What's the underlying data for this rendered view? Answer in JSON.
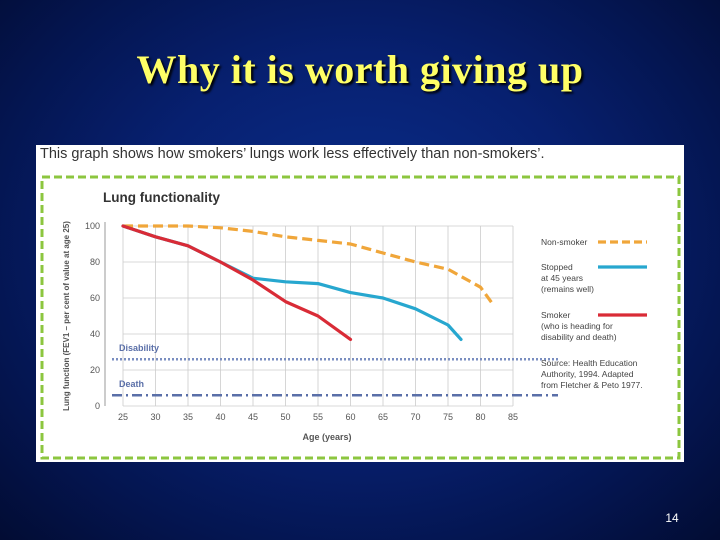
{
  "slide": {
    "title": "Why it is worth giving up",
    "page_number": "14"
  },
  "chart_data": {
    "type": "line",
    "caption": "This graph shows how smokers’ lungs work less effectively than non-smokers’.",
    "title": "Lung functionality",
    "xlabel": "Age (years)",
    "ylabel": "Lung function (FEV1 – per cent of value at age 25)",
    "xlim": [
      25,
      85
    ],
    "ylim": [
      0,
      100
    ],
    "x_ticks": [
      "25",
      "30",
      "35",
      "40",
      "45",
      "50",
      "55",
      "60",
      "65",
      "70",
      "75",
      "80",
      "85"
    ],
    "y_ticks": [
      "0",
      "20",
      "40",
      "60",
      "80",
      "100"
    ],
    "grid": true,
    "legend_position": "right",
    "series": [
      {
        "name": "Non-smoker",
        "style": "dashed",
        "color": "#f0a63a",
        "x": [
          25,
          30,
          35,
          40,
          45,
          50,
          55,
          60,
          65,
          70,
          75,
          80,
          82
        ],
        "y": [
          100,
          100,
          100,
          99,
          97,
          94,
          92,
          90,
          85,
          80,
          76,
          66,
          56
        ]
      },
      {
        "name": "Stopped at 45 years (remains well)",
        "name_lines": [
          "Stopped",
          "at 45 years",
          "(remains well)"
        ],
        "style": "solid",
        "color": "#27a7cf",
        "x": [
          25,
          30,
          35,
          40,
          45,
          50,
          55,
          60,
          65,
          70,
          75,
          77
        ],
        "y": [
          100,
          94,
          89,
          80,
          71,
          69,
          68,
          63,
          60,
          54,
          45,
          37
        ]
      },
      {
        "name": "Smoker (who is heading for disability and death)",
        "name_lines": [
          "Smoker",
          "(who is heading for",
          "disability and death)"
        ],
        "style": "solid",
        "color": "#d92b36",
        "x": [
          25,
          30,
          35,
          40,
          45,
          50,
          55,
          60
        ],
        "y": [
          100,
          94,
          89,
          80,
          70,
          58,
          50,
          37
        ]
      }
    ],
    "thresholds": [
      {
        "label": "Disability",
        "y": 26,
        "color": "#7a8ec0",
        "style": "dotted"
      },
      {
        "label": "Death",
        "y": 6,
        "color": "#5a6fa8",
        "style": "dash-dot"
      }
    ],
    "source_lines": [
      "Source: Health Education",
      "Authority, 1994. Adapted",
      "from Fletcher & Peto 1977."
    ],
    "colors": {
      "border": "#8cc63f",
      "axis_text": "#555555",
      "grid": "#cccccc",
      "title_text": "#333333",
      "label_text": "#5a6fa8"
    }
  }
}
